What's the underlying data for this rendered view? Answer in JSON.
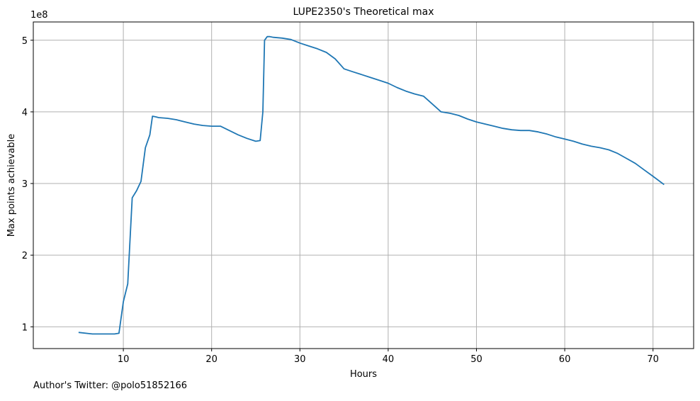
{
  "chart_data": {
    "type": "line",
    "title": "LUPE2350's Theoretical max",
    "xlabel": "Hours",
    "ylabel": "Max points achievable",
    "y_scale_label": "1e8",
    "xlim": [
      -0.2,
      74.6
    ],
    "ylim": [
      0.696,
      5.255
    ],
    "x_ticks": [
      10,
      20,
      30,
      40,
      50,
      60,
      70
    ],
    "x_tick_labels": [
      "10",
      "20",
      "30",
      "40",
      "50",
      "60",
      "70"
    ],
    "y_ticks": [
      1,
      2,
      3,
      4,
      5
    ],
    "y_tick_labels": [
      "1",
      "2",
      "3",
      "4",
      "5"
    ],
    "grid": true,
    "series": [
      {
        "color": "#1f77b4",
        "x": [
          5,
          6.5,
          8,
          9,
          9.5,
          10,
          10.5,
          11,
          11.5,
          12,
          12.5,
          13,
          13.3,
          13.7,
          14,
          15,
          16,
          17,
          18,
          19,
          20,
          21,
          22,
          23,
          24,
          25,
          25.5,
          25.8,
          26,
          26.3,
          26.6,
          27,
          28,
          29,
          30,
          31,
          32,
          33,
          34,
          35,
          36,
          37,
          38,
          39,
          40,
          41,
          42,
          43,
          44,
          45,
          46,
          47,
          48,
          49,
          50,
          51,
          52,
          53,
          54,
          55,
          56,
          57,
          58,
          59,
          60,
          61,
          62,
          63,
          64,
          65,
          66,
          67,
          68,
          69,
          70,
          71.2
        ],
        "values": [
          0.92,
          0.9,
          0.9,
          0.9,
          0.91,
          1.35,
          1.6,
          2.8,
          2.9,
          3.03,
          3.5,
          3.68,
          3.94,
          3.93,
          3.92,
          3.91,
          3.89,
          3.86,
          3.83,
          3.81,
          3.8,
          3.8,
          3.74,
          3.68,
          3.63,
          3.59,
          3.6,
          4.0,
          5.0,
          5.05,
          5.05,
          5.04,
          5.03,
          5.01,
          4.96,
          4.92,
          4.88,
          4.83,
          4.74,
          4.6,
          4.56,
          4.52,
          4.48,
          4.44,
          4.4,
          4.34,
          4.29,
          4.25,
          4.22,
          4.11,
          4.0,
          3.98,
          3.95,
          3.9,
          3.86,
          3.83,
          3.8,
          3.77,
          3.75,
          3.74,
          3.74,
          3.72,
          3.69,
          3.65,
          3.62,
          3.59,
          3.55,
          3.52,
          3.5,
          3.47,
          3.42,
          3.35,
          3.28,
          3.19,
          3.1,
          2.99
        ]
      }
    ]
  },
  "footer_note": "Author's Twitter: @polo51852166"
}
